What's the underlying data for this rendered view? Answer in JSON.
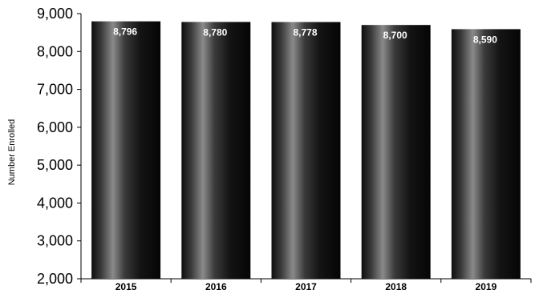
{
  "chart_data": {
    "type": "bar",
    "title": "",
    "xlabel": "",
    "ylabel": "Number Enrolled",
    "categories": [
      "2015",
      "2016",
      "2017",
      "2018",
      "2019"
    ],
    "values": [
      8796,
      8780,
      8778,
      8700,
      8590
    ],
    "value_labels": [
      "8,796",
      "8,780",
      "8,778",
      "8,700",
      "8,590"
    ],
    "ylim": [
      2000,
      9000
    ],
    "yticks": [
      2000,
      3000,
      4000,
      5000,
      6000,
      7000,
      8000,
      9000
    ],
    "ytick_labels": [
      "2,000",
      "3,000",
      "4,000",
      "5,000",
      "6,000",
      "7,000",
      "8,000",
      "9,000"
    ],
    "grid": false,
    "legend": "none",
    "bar_color": "#1a1a1a"
  }
}
